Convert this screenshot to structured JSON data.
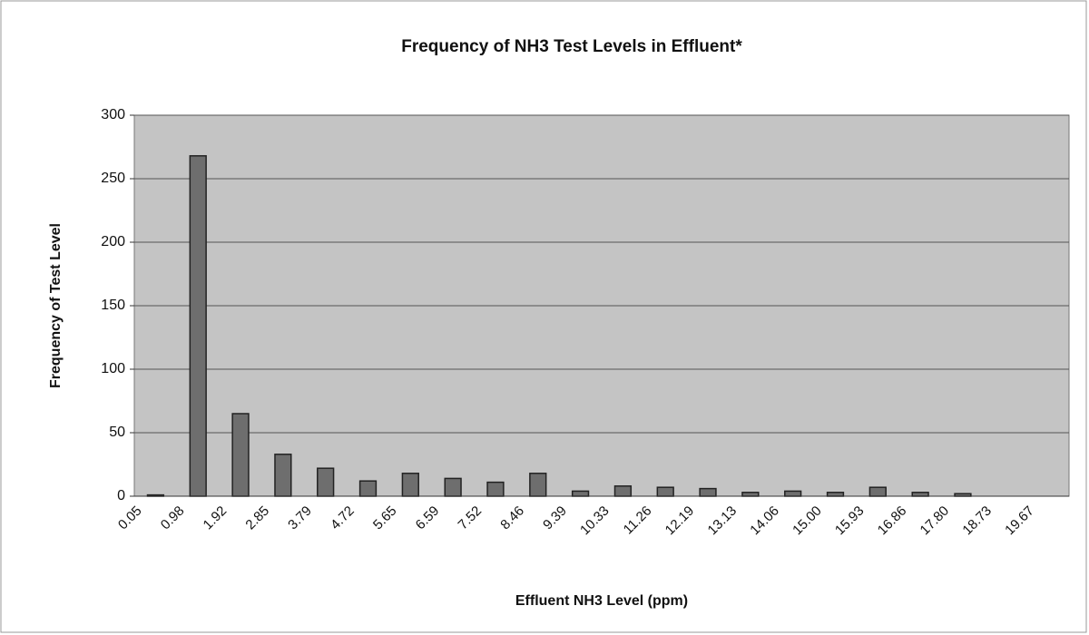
{
  "chart_data": {
    "type": "bar",
    "title": "Frequency of NH3 Test Levels in Effluent*",
    "xlabel": "Effluent NH3 Level (ppm)",
    "ylabel": "Frequency of Test Level",
    "categories": [
      "0.05",
      "0.98",
      "1.92",
      "2.85",
      "3.79",
      "4.72",
      "5.65",
      "6.59",
      "7.52",
      "8.46",
      "9.39",
      "10.33",
      "11.26",
      "12.19",
      "13.13",
      "14.06",
      "15.00",
      "15.93",
      "16.86",
      "17.80",
      "18.73",
      "19.67"
    ],
    "values": [
      1,
      268,
      65,
      33,
      22,
      12,
      18,
      14,
      11,
      18,
      4,
      8,
      7,
      6,
      3,
      4,
      3,
      7,
      3,
      2,
      0,
      0
    ],
    "color": "#6e6e6e",
    "ylim": [
      0,
      300
    ],
    "yticks": [
      0,
      50,
      100,
      150,
      200,
      250,
      300
    ],
    "grid": true
  }
}
